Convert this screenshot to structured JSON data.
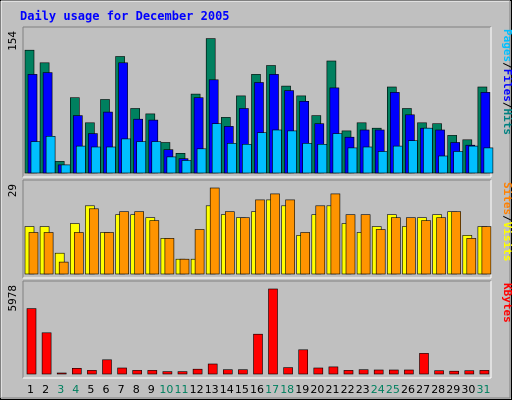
{
  "chart_data": {
    "type": "bar",
    "title": "Daily usage for December 2005",
    "x": [
      "1",
      "2",
      "3",
      "4",
      "5",
      "6",
      "7",
      "8",
      "9",
      "10",
      "11",
      "12",
      "13",
      "14",
      "15",
      "16",
      "17",
      "18",
      "19",
      "20",
      "21",
      "22",
      "23",
      "24",
      "25",
      "26",
      "27",
      "28",
      "29",
      "30",
      "31"
    ],
    "weekend_days": [
      "3",
      "4",
      "10",
      "11",
      "17",
      "18",
      "24",
      "25",
      "31"
    ],
    "panels": [
      {
        "id": "hits",
        "ymax_label": "154",
        "ylim": [
          0,
          154
        ],
        "ylabel_parts": [
          "Pages",
          "/",
          "Files",
          "/",
          "Hits"
        ],
        "ylabel_colors": [
          "#00bfff",
          "#000000",
          "#0000ff",
          "#000000",
          "#008080"
        ],
        "series": [
          {
            "name": "Hits",
            "color": "#00805f",
            "values": [
              137,
              123,
              13,
              84,
              56,
              82,
              130,
              72,
              66,
              34,
              22,
              88,
              150,
              62,
              86,
              110,
              120,
              97,
              86,
              64,
              125,
              47,
              56,
              50,
              96,
              72,
              56,
              55,
              42,
              37,
              96
            ]
          },
          {
            "name": "Files",
            "color": "#0000ff",
            "values": [
              110,
              112,
              9,
              64,
              44,
              68,
              123,
              60,
              59,
              26,
              16,
              84,
              104,
              52,
              72,
              101,
              110,
              92,
              80,
              55,
              95,
              40,
              48,
              48,
              90,
              65,
              50,
              48,
              34,
              31,
              90
            ]
          },
          {
            "name": "Pages",
            "color": "#00bfff",
            "values": [
              35,
              41,
              9,
              30,
              29,
              29,
              38,
              35,
              35,
              18,
              14,
              27,
              55,
              33,
              32,
              45,
              48,
              47,
              33,
              32,
              44,
              28,
              29,
              24,
              30,
              36,
              50,
              19,
              24,
              30,
              28
            ]
          }
        ]
      },
      {
        "id": "visits",
        "ymax_label": "29",
        "ylim": [
          0,
          29
        ],
        "ylabel_parts": [
          "Sites",
          "/",
          "Visits"
        ],
        "ylabel_colors": [
          "#ff8000",
          "#000000",
          "#ffff00"
        ],
        "series": [
          {
            "name": "Visits",
            "color": "#ffff00",
            "values": [
              16,
              16,
              7,
              17,
              23,
              14,
              20,
              20,
              19,
              12,
              5,
              5,
              23,
              20,
              19,
              21,
              25,
              23,
              13,
              20,
              23,
              17,
              14,
              16,
              20,
              16,
              19,
              20,
              21,
              13,
              16
            ]
          },
          {
            "name": "Sites",
            "color": "#ff9400",
            "values": [
              14,
              14,
              4,
              14,
              22,
              14,
              21,
              21,
              18,
              12,
              5,
              15,
              29,
              21,
              19,
              25,
              27,
              25,
              14,
              23,
              27,
              20,
              20,
              15,
              19,
              19,
              18,
              19,
              21,
              12,
              16
            ]
          }
        ]
      },
      {
        "id": "kbytes",
        "ymax_label": "5978",
        "ylim": [
          0,
          5978
        ],
        "ylabel_parts": [
          "KBytes"
        ],
        "ylabel_colors": [
          "#ff0000"
        ],
        "series": [
          {
            "name": "KBytes",
            "color": "#ff0000",
            "values": [
              4600,
              2900,
              0,
              400,
              250,
              1000,
              420,
              250,
              250,
              170,
              170,
              340,
              700,
              300,
              300,
              2800,
              5978,
              450,
              1700,
              420,
              500,
              250,
              300,
              280,
              280,
              280,
              1450,
              230,
              200,
              230,
              250
            ]
          }
        ]
      }
    ]
  }
}
